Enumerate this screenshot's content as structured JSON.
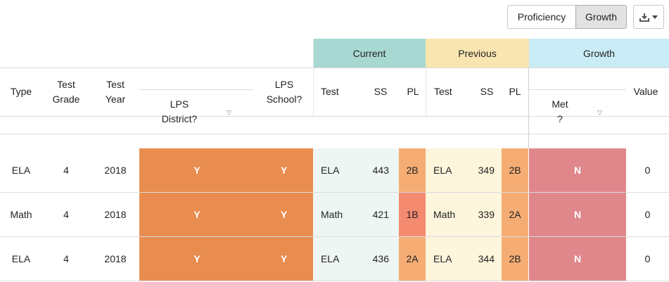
{
  "toolbar": {
    "proficiency_label": "Proficiency",
    "growth_label": "Growth",
    "export_icon": "download-icon",
    "caret_icon": "caret-down-icon"
  },
  "groups": {
    "current": "Current",
    "previous": "Previous",
    "growth": "Growth"
  },
  "headers": {
    "type": "Type",
    "test_grade_1": "Test",
    "test_grade_2": "Grade",
    "test_year_1": "Test",
    "test_year_2": "Year",
    "lps_district_1": "LPS",
    "lps_district_2": "District?",
    "lps_school_1": "LPS",
    "lps_school_2": "School?",
    "cur_test": "Test",
    "cur_ss": "SS",
    "cur_pl": "PL",
    "prev_test": "Test",
    "prev_ss": "SS",
    "prev_pl": "PL",
    "met_1": "Met",
    "met_2": "?",
    "value": "Value"
  },
  "colors": {
    "district_school_fill": "#e98c50",
    "current_fill": "#eef6f4",
    "previous_fill": "#fdf5dc",
    "pl_light": "#f5ad74",
    "pl_red": "#f48a70",
    "met_fill": "#e0878b"
  },
  "rows": [
    {
      "type": "ELA",
      "grade": "4",
      "year": "2018",
      "district": "Y",
      "school": "Y",
      "cur_test": "ELA",
      "cur_ss": "443",
      "cur_pl": "2B",
      "prev_test": "ELA",
      "prev_ss": "349",
      "prev_pl": "2B",
      "met": "N",
      "value": "0"
    },
    {
      "type": "Math",
      "grade": "4",
      "year": "2018",
      "district": "Y",
      "school": "Y",
      "cur_test": "Math",
      "cur_ss": "421",
      "cur_pl": "1B",
      "prev_test": "Math",
      "prev_ss": "339",
      "prev_pl": "2A",
      "met": "N",
      "value": "0"
    },
    {
      "type": "ELA",
      "grade": "4",
      "year": "2018",
      "district": "Y",
      "school": "Y",
      "cur_test": "ELA",
      "cur_ss": "436",
      "cur_pl": "2A",
      "prev_test": "ELA",
      "prev_ss": "344",
      "prev_pl": "2B",
      "met": "N",
      "value": "0"
    }
  ]
}
